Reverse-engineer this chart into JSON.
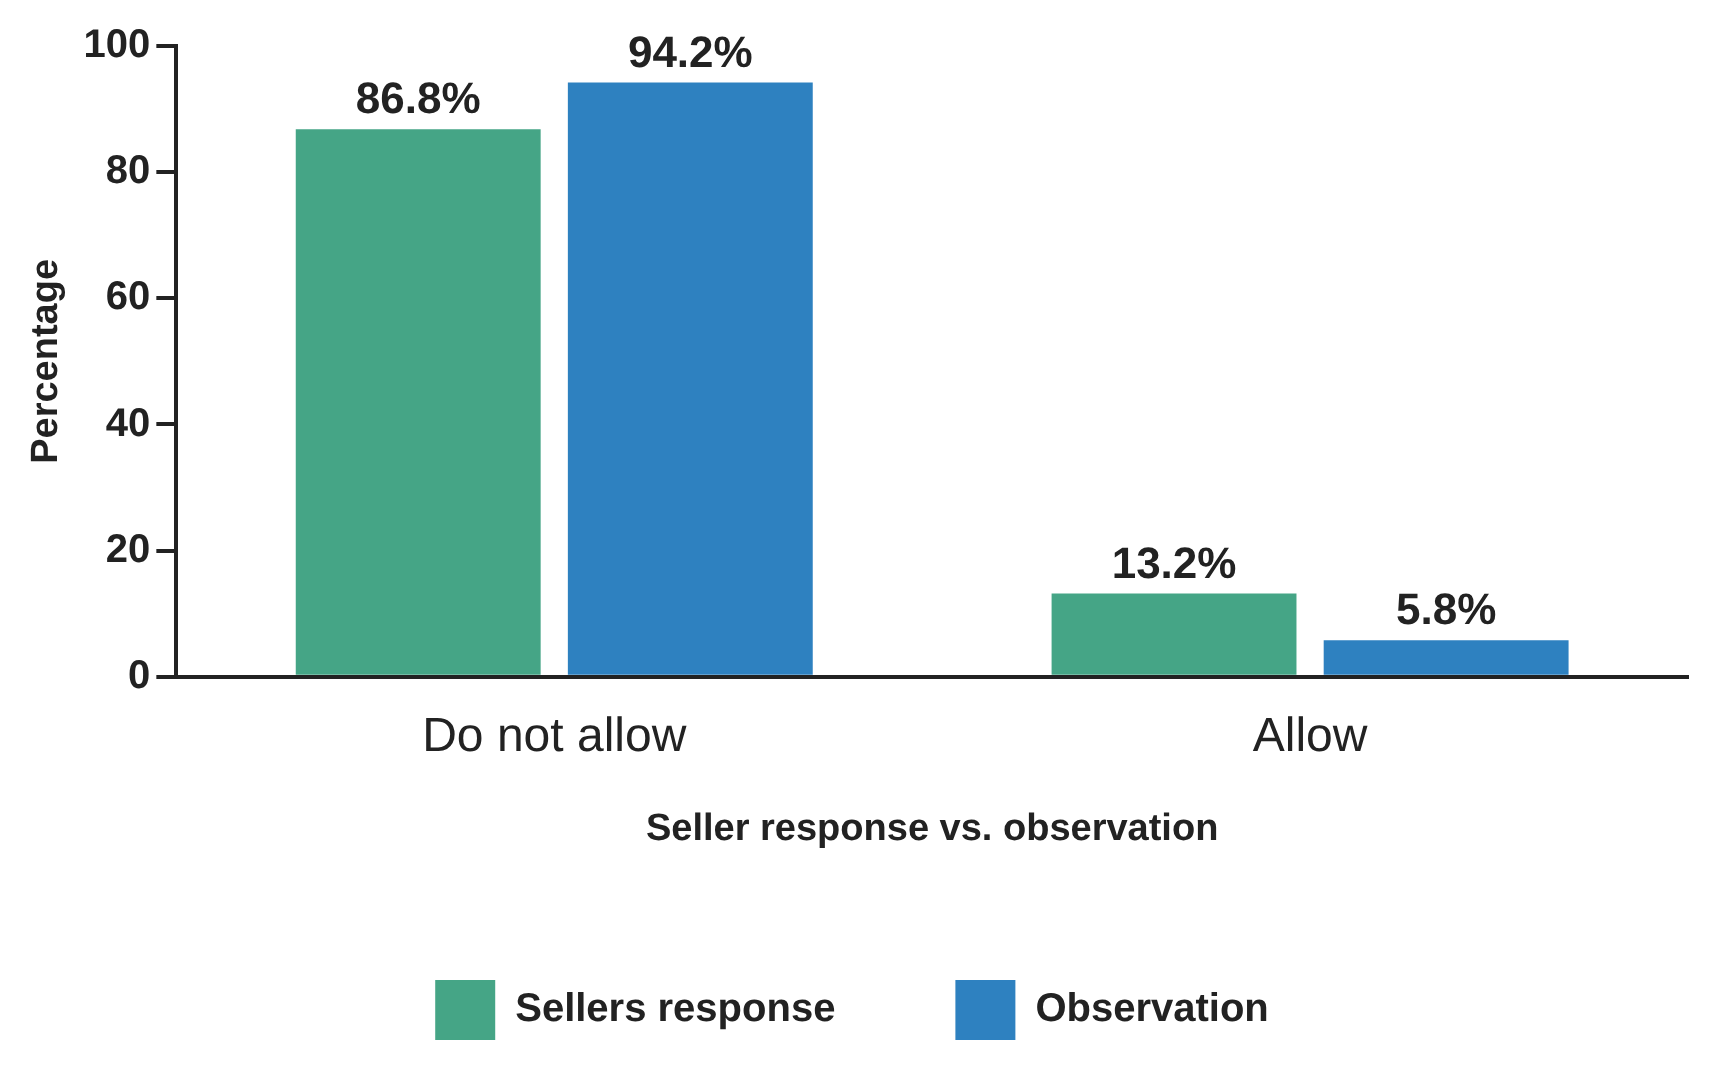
{
  "chart_data": {
    "type": "bar",
    "xlabel": "Seller response vs. observation",
    "ylabel": "Percentage",
    "categories": [
      "Do not allow",
      "Allow"
    ],
    "series": [
      {
        "name": "Sellers response",
        "color": "#45a586",
        "values": [
          86.8,
          13.2
        ],
        "value_labels": [
          "86.8%",
          "13.2%"
        ]
      },
      {
        "name": "Observation",
        "color": "#2e81c0",
        "values": [
          94.2,
          5.8
        ],
        "value_labels": [
          "94.2%",
          "5.8%"
        ]
      }
    ],
    "ylim": [
      0,
      100
    ],
    "yticks": [
      0,
      20,
      40,
      60,
      80,
      100
    ],
    "grid": false,
    "legend": "bottom"
  }
}
